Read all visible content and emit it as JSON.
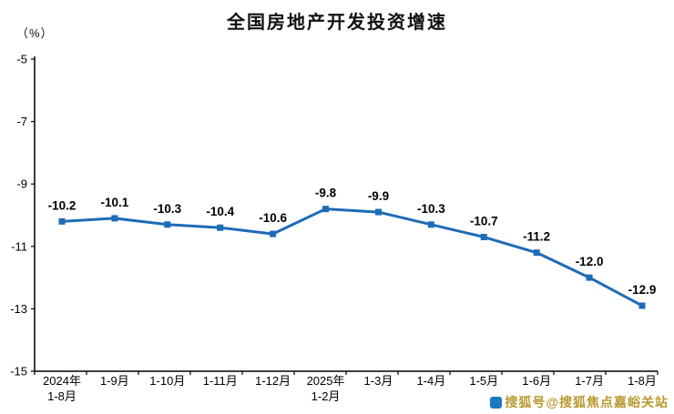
{
  "header": {
    "title": "全国房地产开发投资增速",
    "y_unit": "（%）"
  },
  "watermark": {
    "text": "搜狐号@搜狐焦点嘉峪关站",
    "color": "#b9992e"
  },
  "chart_data": {
    "type": "line",
    "title": "全国房地产开发投资增速",
    "ylabel": "（%）",
    "ylim": [
      -15,
      -5
    ],
    "yticks": [
      -5,
      -7,
      -9,
      -11,
      -13,
      -15
    ],
    "categories": [
      "2024年\n1-8月",
      "1-9月",
      "1-10月",
      "1-11月",
      "1-12月",
      "2025年\n1-2月",
      "1-3月",
      "1-4月",
      "1-5月",
      "1-6月",
      "1-7月",
      "1-8月"
    ],
    "values": [
      -10.2,
      -10.1,
      -10.3,
      -10.4,
      -10.6,
      -9.8,
      -9.9,
      -10.3,
      -10.7,
      -11.2,
      -12.0,
      -12.9
    ],
    "line_color": "#1e6bb8",
    "axis_color": "#000000",
    "label_color": "#000000",
    "marker": "square",
    "grid": false,
    "legend": "none",
    "data_labels": true
  }
}
